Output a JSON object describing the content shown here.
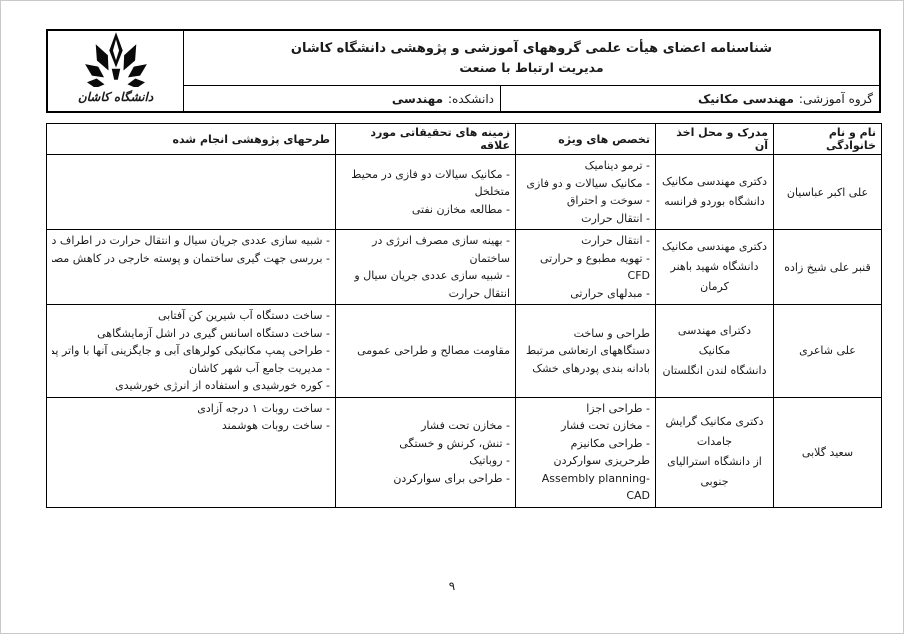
{
  "colors": {
    "ink": "#000000",
    "paper": "#ffffff"
  },
  "page": {
    "page_number": "۹"
  },
  "header": {
    "title_line1": "شناسنامه اعضای هیأت علمی گروههای آموزشی و پژوهشی دانشگاه کاشان",
    "title_line2": "مدیریت ارتباط با صنعت",
    "group_label": "گروه آموزشی:",
    "group_value": "مهندسی مکانیک",
    "faculty_label": "دانشکده:",
    "faculty_value": "مهندسی",
    "logo_icon": "kashan-university-emblem",
    "logo_caption": "دانشگاه کاشان"
  },
  "table": {
    "columns": [
      "نام و نام خانوادگی",
      "مدرک و محل اخذ آن",
      "تخصص های ویژه",
      "زمینه های تحقیقاتی مورد علاقه",
      "طرحهای پژوهشی انجام شده"
    ],
    "rows": [
      {
        "name": "علی اکبر عباسیان",
        "degree_lines": [
          "دکتری مهندسی مکانیک",
          "دانشگاه بوردو فرانسه"
        ],
        "specialties": [
          "- ترمو دینامیک",
          "- مکانیک سیالات و دو فازی",
          "- سوخت و احتراق",
          "- انتقال حرارت"
        ],
        "interests": [
          "- مکانیک سیالات دو فازی در محیط متخلخل",
          "- مطالعه مخازن نفتی"
        ],
        "projects": []
      },
      {
        "name": "قنبر علی شیخ زاده",
        "degree_lines": [
          "دکتری مهندسی مکانیک",
          "دانشگاه شهید باهنر کرمان"
        ],
        "specialties": [
          "- انتقال حرارت",
          "- تهویه مطبوع و حرارتی CFD",
          "- مبدلهای حرارتی"
        ],
        "interests": [
          "- بهینه سازی مصرف انرژی در ساختمان",
          "- شبیه سازی عددی جریان سیال و انتقال حرارت"
        ],
        "projects": [
          "- شبیه سازی عددی جریان سیال و انتقال حرارت در اطراف دیسک دوار",
          "- بررسی جهت گیری ساختمان و پوسته خارجی در کاهش مصرف انرژی"
        ]
      },
      {
        "name": "علی شاعری",
        "degree_lines": [
          "دکترای مهندسی مکانیک",
          "دانشگاه لندن انگلستان"
        ],
        "specialties": [
          "طراحی و ساخت دستگاههای ارتعاشی مرتبط بادانه بندی پودرهای خشک"
        ],
        "interests": [
          "مقاومت مصالح و طراحی عمومی"
        ],
        "projects": [
          "- ساخت دستگاه آب شیرین کن آفتابی",
          "- ساخت دستگاه اسانس گیری در اشل آزمایشگاهی",
          "- طراحی پمپ مکانیکی کولرهای آبی و جایگزینی آنها با واتر پمپ برقی",
          "- مدیریت جامع آب شهر کاشان",
          "- کوره خورشیدی و استفاده از انرژی خورشیدی"
        ]
      },
      {
        "name": "سعید گلابی",
        "degree_lines": [
          "دکتری مکانیک گرایش",
          "جامدات",
          "از دانشگاه استرالیای جنوبی"
        ],
        "specialties": [
          "- طراحی اجزا",
          "- مخازن تحت فشار",
          "- طراحی مکانیزم",
          "طرحریزی سوارکردن Assembly planning- CAD"
        ],
        "interests": [
          "- مخازن تحت فشار",
          "- تنش، کرنش و خستگی",
          "- روباتیک",
          "- طراحی برای سوارکردن"
        ],
        "projects": [
          "- ساخت روبات ۱ درجه آزادی",
          "- ساخت روبات هوشمند"
        ]
      }
    ]
  }
}
